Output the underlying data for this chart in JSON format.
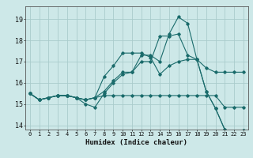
{
  "xlabel": "Humidex (Indice chaleur)",
  "background_color": "#cde8e8",
  "grid_color": "#aacccc",
  "line_color": "#1a6b6b",
  "xlim": [
    -0.5,
    23.5
  ],
  "ylim": [
    13.8,
    19.6
  ],
  "yticks": [
    14,
    15,
    16,
    17,
    18,
    19
  ],
  "xticks": [
    0,
    1,
    2,
    3,
    4,
    5,
    6,
    7,
    8,
    9,
    10,
    11,
    12,
    13,
    14,
    15,
    16,
    17,
    18,
    19,
    20,
    21,
    22,
    23
  ],
  "series": [
    [
      15.5,
      15.2,
      15.3,
      15.4,
      15.4,
      15.3,
      15.0,
      14.85,
      15.5,
      16.0,
      16.4,
      16.5,
      17.3,
      17.3,
      17.0,
      18.3,
      19.1,
      18.8,
      17.1,
      15.6,
      14.8,
      13.8,
      13.7,
      13.75
    ],
    [
      15.5,
      15.2,
      15.3,
      15.4,
      15.4,
      15.3,
      15.2,
      15.3,
      15.6,
      16.1,
      16.5,
      16.5,
      17.0,
      17.0,
      18.2,
      18.2,
      18.3,
      17.3,
      17.1,
      15.6,
      14.8,
      13.8,
      13.7,
      13.75
    ],
    [
      15.5,
      15.2,
      15.3,
      15.4,
      15.4,
      15.3,
      15.2,
      15.3,
      16.3,
      16.8,
      17.4,
      17.4,
      17.4,
      17.2,
      16.4,
      16.8,
      17.0,
      17.1,
      17.1,
      16.7,
      16.5,
      16.5,
      16.5,
      16.5
    ],
    [
      15.5,
      15.2,
      15.3,
      15.4,
      15.4,
      15.3,
      15.2,
      15.3,
      15.4,
      15.4,
      15.4,
      15.4,
      15.4,
      15.4,
      15.4,
      15.4,
      15.4,
      15.4,
      15.4,
      15.4,
      15.4,
      14.85,
      14.85,
      14.85
    ]
  ]
}
